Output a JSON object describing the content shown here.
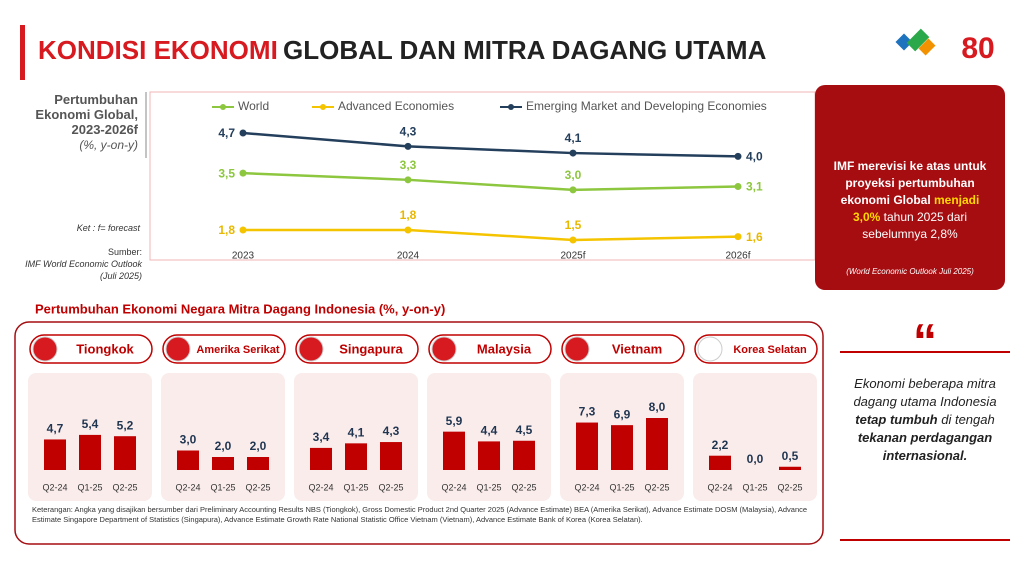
{
  "header": {
    "title_red": "KONDISI EKONOMI",
    "title_dark": "GLOBAL DAN MITRA DAGANG UTAMA",
    "logo_text": "80"
  },
  "chart_data": [
    {
      "type": "line",
      "title": "Pertumbuhan Ekonomi Global, 2023-2026f",
      "subtitle": "(%, y-on-y)",
      "note": "Ket : f= forecast",
      "source": "Sumber:",
      "source_detail": "IMF World Economic Outlook (Juli 2025)",
      "categories": [
        "2023",
        "2024",
        "2025f",
        "2026f"
      ],
      "series": [
        {
          "name": "World",
          "color": "#8dc63f",
          "values": [
            3.5,
            3.3,
            3.0,
            3.1
          ],
          "value_labels": [
            "3,5",
            "3,3",
            "3,0",
            "3,1"
          ]
        },
        {
          "name": "Advanced Economies",
          "color": "#f5c400",
          "values": [
            1.8,
            1.8,
            1.5,
            1.6
          ],
          "value_labels": [
            "1,8",
            "1,8",
            "1,5",
            "1,6"
          ]
        },
        {
          "name": "Emerging Market and Developing Economies",
          "color": "#243f5c",
          "values": [
            4.7,
            4.3,
            4.1,
            4.0
          ],
          "value_labels": [
            "4,7",
            "4,3",
            "4,1",
            "4,0"
          ]
        }
      ]
    },
    {
      "type": "bar",
      "title": "Tiongkok",
      "color": "#c00000",
      "categories": [
        "Q2-24",
        "Q1-25",
        "Q2-25"
      ],
      "values": [
        4.7,
        5.4,
        5.2
      ],
      "value_labels": [
        "4,7",
        "5,4",
        "5,2"
      ]
    },
    {
      "type": "bar",
      "title": "Amerika Serikat",
      "color": "#c00000",
      "categories": [
        "Q2-24",
        "Q1-25",
        "Q2-25"
      ],
      "values": [
        3.0,
        2.0,
        2.0
      ],
      "value_labels": [
        "3,0",
        "2,0",
        "2,0"
      ]
    },
    {
      "type": "bar",
      "title": "Singapura",
      "color": "#c00000",
      "categories": [
        "Q2-24",
        "Q1-25",
        "Q2-25"
      ],
      "values": [
        3.4,
        4.1,
        4.3
      ],
      "value_labels": [
        "3,4",
        "4,1",
        "4,3"
      ]
    },
    {
      "type": "bar",
      "title": "Malaysia",
      "color": "#c00000",
      "categories": [
        "Q2-24",
        "Q1-25",
        "Q2-25"
      ],
      "values": [
        5.9,
        4.4,
        4.5
      ],
      "value_labels": [
        "5,9",
        "4,4",
        "4,5"
      ]
    },
    {
      "type": "bar",
      "title": "Vietnam",
      "color": "#c00000",
      "categories": [
        "Q2-24",
        "Q1-25",
        "Q2-25"
      ],
      "values": [
        7.3,
        6.9,
        8.0
      ],
      "value_labels": [
        "7,3",
        "6,9",
        "8,0"
      ]
    },
    {
      "type": "bar",
      "title": "Korea Selatan",
      "color": "#c00000",
      "categories": [
        "Q2-24",
        "Q1-25",
        "Q2-25"
      ],
      "values": [
        2.2,
        0.0,
        0.5
      ],
      "value_labels": [
        "2,2",
        "0,0",
        "0,5"
      ]
    }
  ],
  "section_title": "Pertumbuhan Ekonomi Negara Mitra Dagang Indonesia (%, y-on-y)",
  "imf_box": {
    "parts": [
      "IMF merevisi ke atas untuk proyeksi pertumbuhan ekonomi Global ",
      "menjadi",
      "3,0%",
      " tahun 2025 dari sebelumnya 2,8%"
    ],
    "source": "(World Economic Outlook Juli 2025)"
  },
  "quote": {
    "parts": [
      "Ekonomi beberapa mitra dagang utama Indonesia ",
      "tetap tumbuh",
      " di tengah ",
      "tekanan perdagangan internasional."
    ]
  },
  "footnote": "Keterangan: Angka yang disajikan bersumber dari Preliminary Accounting Results NBS (Tiongkok), Gross Domestic Product 2nd Quarter 2025 (Advance Estimate) BEA (Amerika Serikat), Advance Estimate DOSM (Malaysia), Advance Estimate Singapore Department of Statistics (Singapura), Advance Estimate Growth Rate National Statistic Office Vietnam (Vietnam), Advance Estimate Bank of Korea (Korea Selatan)."
}
